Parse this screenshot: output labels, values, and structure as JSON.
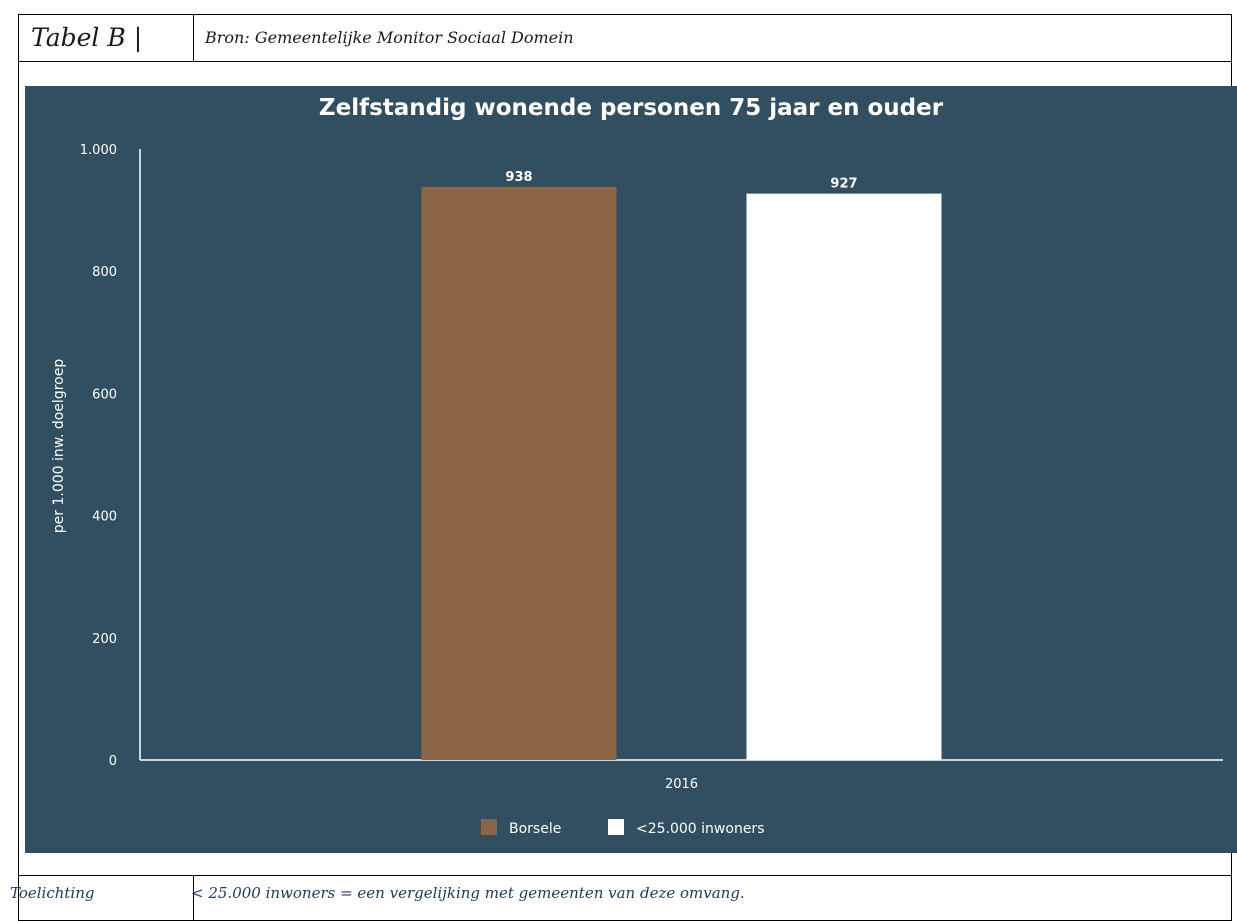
{
  "header": {
    "table_label": "Tabel B |",
    "source": "Bron: Gemeentelijke Monitor Sociaal Domein"
  },
  "footer": {
    "label": "Toelichting",
    "note": "< 25.000 inwoners = een vergelijking met gemeenten van deze omvang."
  },
  "colors": {
    "background": "#324f62",
    "borsele": "#8b6545",
    "reference": "#ffffff"
  },
  "chart_data": {
    "type": "bar",
    "title": "Zelfstandig wonende personen 75 jaar en ouder",
    "xlabel": "",
    "ylabel": "per 1.000 inw. doelgroep",
    "categories": [
      "2016"
    ],
    "series": [
      {
        "name": "Borsele",
        "values": [
          938
        ],
        "labels": [
          "938"
        ],
        "color": "#8b6545"
      },
      {
        "name": "<25.000 inwoners",
        "values": [
          927
        ],
        "labels": [
          "927"
        ],
        "color": "#ffffff"
      }
    ],
    "ylim": [
      0,
      1000
    ],
    "yticks": [
      0,
      200,
      400,
      600,
      800,
      1000
    ],
    "ytick_labels": [
      "0",
      "200",
      "400",
      "600",
      "800",
      "1.000"
    ],
    "grid": false,
    "legend": "bottom-center"
  }
}
